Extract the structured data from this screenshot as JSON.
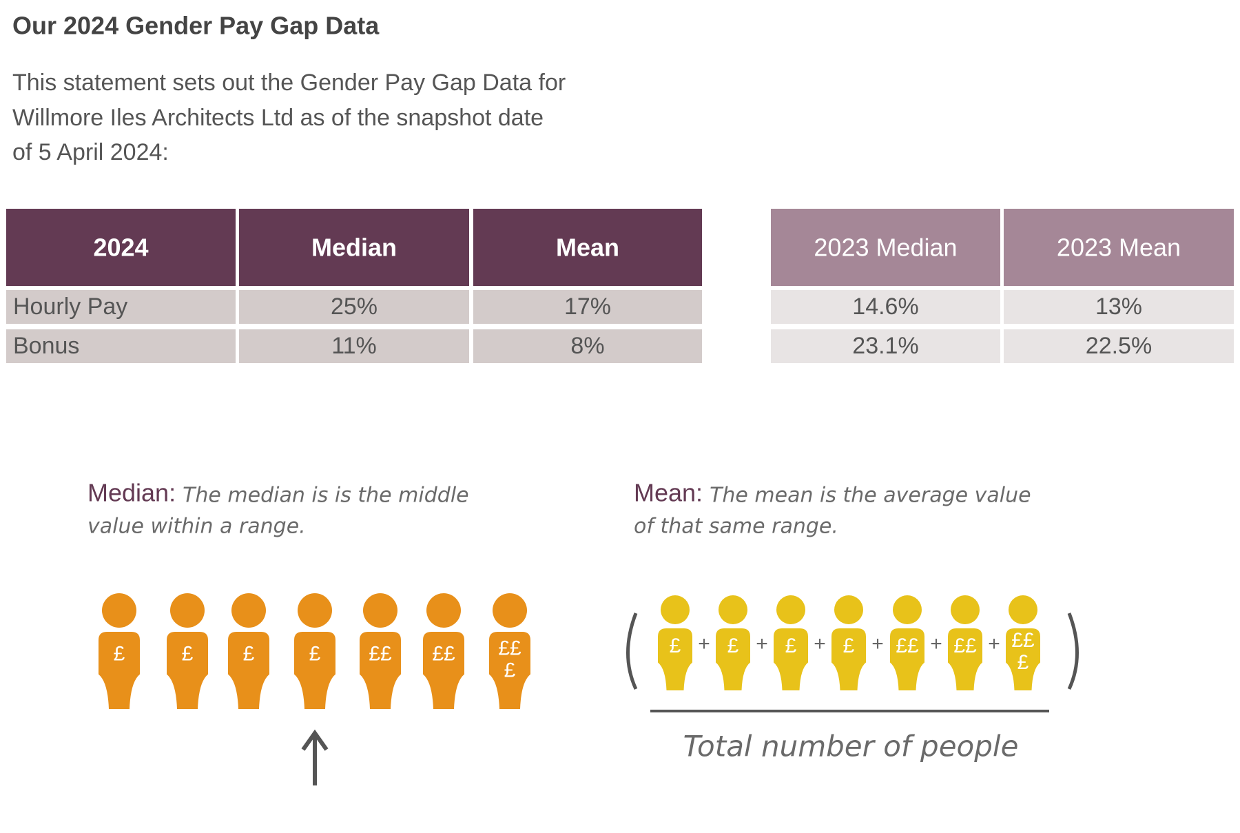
{
  "title": "Our 2024 Gender Pay Gap Data",
  "intro": [
    "This statement sets out the Gender Pay Gap Data for",
    "Willmore Iles Architects Ltd as of the snapshot date",
    "of 5 April 2024:"
  ],
  "table_2024": {
    "headers": [
      "2024",
      "Median",
      "Mean"
    ],
    "rows": [
      [
        "Hourly Pay",
        "25%",
        "17%"
      ],
      [
        "Bonus",
        "11%",
        "8%"
      ]
    ]
  },
  "table_2023": {
    "headers": [
      "2023 Median",
      "2023 Mean"
    ],
    "rows": [
      [
        "14.6%",
        "13%"
      ],
      [
        "23.1%",
        "22.5%"
      ]
    ]
  },
  "median": {
    "label": "Median:",
    "text": [
      "The median is is the middle",
      "value within a range."
    ],
    "figures": [
      [
        "£"
      ],
      [
        "£"
      ],
      [
        "£"
      ],
      [
        "£"
      ],
      [
        "££"
      ],
      [
        "££"
      ],
      [
        "££",
        "£"
      ]
    ]
  },
  "mean": {
    "label": "Mean:",
    "text": [
      "The mean is the average value",
      "of that same range."
    ],
    "figures": [
      [
        "£"
      ],
      [
        "£"
      ],
      [
        "£"
      ],
      [
        "£"
      ],
      [
        "££"
      ],
      [
        "££"
      ],
      [
        "££",
        "£"
      ]
    ],
    "plus": "+",
    "denominator": "Total number of people"
  }
}
